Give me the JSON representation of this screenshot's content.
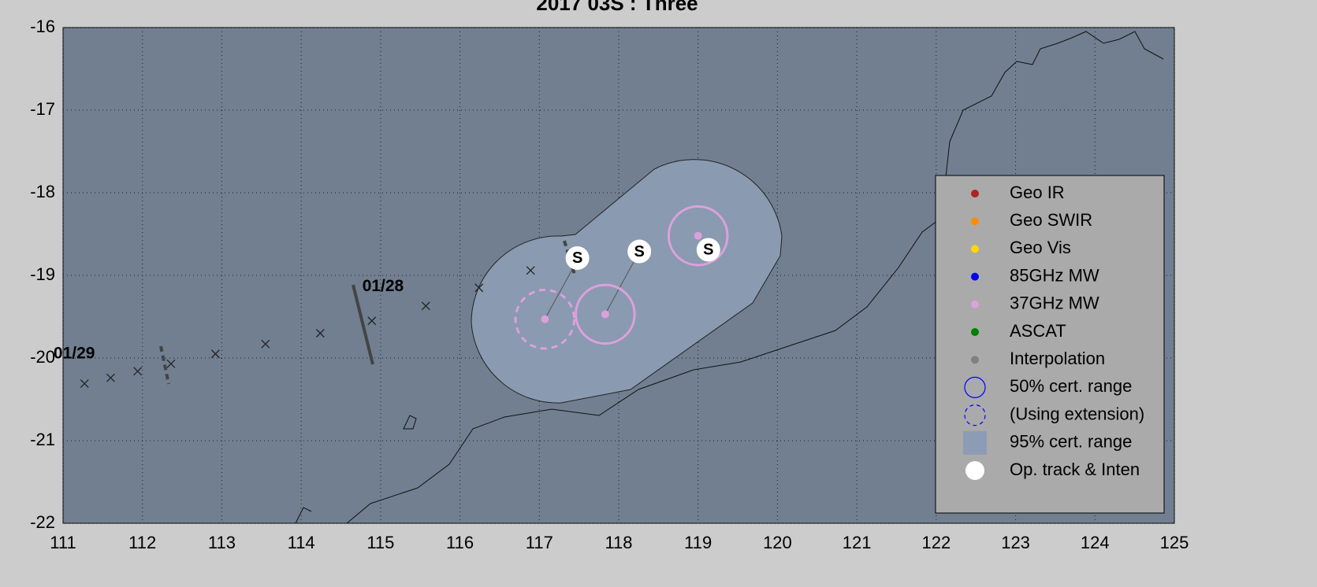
{
  "chart_data": {
    "type": "scatter",
    "title": "2017  03S :  Three",
    "xlim": [
      111,
      125
    ],
    "ylim": [
      -22,
      -16
    ],
    "xticks": [
      111,
      112,
      113,
      114,
      115,
      116,
      117,
      118,
      119,
      120,
      121,
      122,
      123,
      124,
      125
    ],
    "yticks": [
      -22,
      -21,
      -20,
      -19,
      -18,
      -17,
      -16
    ],
    "grid": true,
    "series": [
      {
        "marker": "x",
        "color": "#222222",
        "x": [
          111.27,
          111.6,
          111.94,
          112.36,
          112.92,
          113.55,
          114.24,
          114.89,
          115.57,
          116.24,
          116.89
        ],
        "y": [
          -20.31,
          -20.24,
          -20.16,
          -20.07,
          -19.95,
          -19.83,
          -19.7,
          -19.55,
          -19.37,
          -19.15,
          -18.94
        ]
      },
      {
        "marker": "circle",
        "color": "#dda0dd",
        "x": [
          117.07,
          117.83,
          119.0
        ],
        "y": [
          -19.53,
          -19.47,
          -18.52
        ],
        "radius": [
          0.37,
          0.37,
          0.37
        ],
        "dashed": [
          true,
          false,
          false
        ]
      },
      {
        "marker": "badge",
        "color": "#ffffff",
        "x": [
          117.48,
          118.26,
          119.13
        ],
        "y": [
          -18.79,
          -18.71,
          -18.69
        ],
        "value_labels": [
          "S",
          "S",
          "S"
        ]
      }
    ],
    "annotations": [
      {
        "text": "01/28",
        "x": 114.77,
        "y": -19.14
      },
      {
        "text": "01/29",
        "x": 110.88,
        "y": -19.95
      }
    ],
    "legend": {
      "position": "east",
      "entries": [
        {
          "name": "Geo IR",
          "color": "#b22222",
          "symbol": "dot"
        },
        {
          "name": "Geo SWIR",
          "color": "#ff8c00",
          "symbol": "dot"
        },
        {
          "name": "Geo Vis",
          "color": "#ffd700",
          "symbol": "dot"
        },
        {
          "name": "85GHz MW",
          "color": "#0000ff",
          "symbol": "dot"
        },
        {
          "name": "37GHz MW",
          "color": "#dda0dd",
          "symbol": "dot"
        },
        {
          "name": "ASCAT",
          "color": "#008000",
          "symbol": "dot"
        },
        {
          "name": "Interpolation",
          "color": "#808080",
          "symbol": "dot"
        },
        {
          "name": "50% cert. range",
          "color": "#0000ff",
          "symbol": "ring"
        },
        {
          "name": "(Using extension)",
          "color": "#0000ff",
          "symbol": "dashed-ring"
        },
        {
          "name": "95% cert. range",
          "color": "#8c9cb4",
          "symbol": "square"
        },
        {
          "name": "Op. track & Inten",
          "color": "#ffffff",
          "symbol": "big-dot"
        }
      ]
    }
  }
}
